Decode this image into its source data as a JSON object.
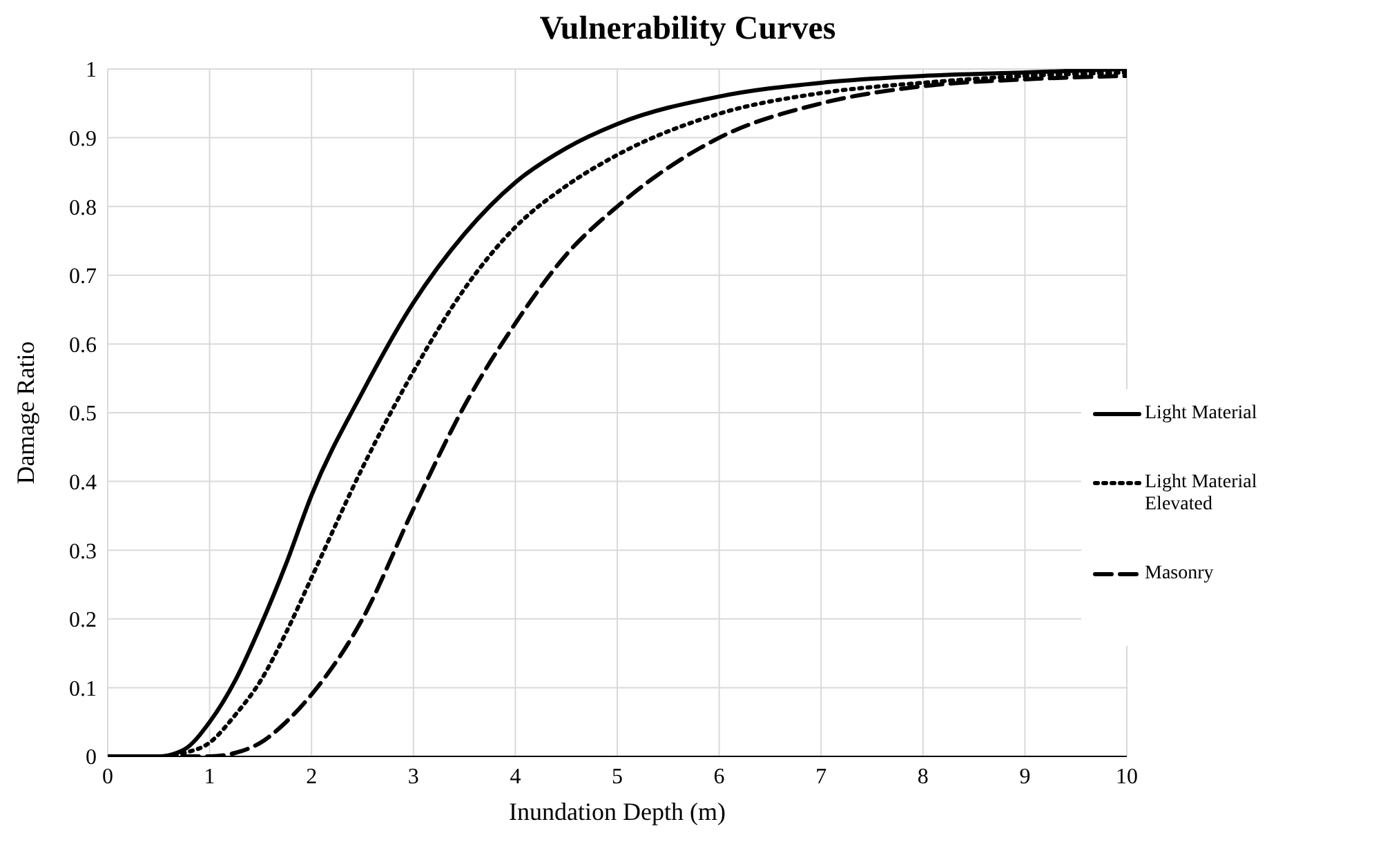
{
  "chart_data": {
    "type": "line",
    "title": "Vulnerability Curves",
    "xlabel": "Inundation Depth (m)",
    "ylabel": "Damage Ratio",
    "xlim": [
      0,
      10
    ],
    "xticks": [
      0,
      1,
      2,
      3,
      4,
      5,
      6,
      7,
      8,
      9,
      10
    ],
    "ylim": [
      0,
      1
    ],
    "yticks": [
      0,
      0.1,
      0.2,
      0.3,
      0.4,
      0.5,
      0.6,
      0.7,
      0.8,
      0.9,
      1
    ],
    "grid": true,
    "legend": "right",
    "marker": "none",
    "x": [
      0,
      0.5,
      0.75,
      1,
      1.25,
      1.5,
      1.75,
      2,
      2.5,
      3,
      3.5,
      4,
      4.5,
      5,
      6,
      7,
      8,
      9,
      10
    ],
    "series": [
      {
        "name": "Light Material",
        "color": "#000000",
        "line_style": "solid",
        "values": [
          0,
          0,
          0.01,
          0.05,
          0.11,
          0.19,
          0.28,
          0.38,
          0.53,
          0.66,
          0.76,
          0.835,
          0.885,
          0.92,
          0.96,
          0.98,
          0.99,
          0.995,
          1
        ]
      },
      {
        "name": "Light Material Elevated",
        "color": "#000000",
        "line_style": "dotted",
        "values": [
          0,
          0,
          0.005,
          0.02,
          0.06,
          0.11,
          0.18,
          0.26,
          0.42,
          0.56,
          0.68,
          0.77,
          0.83,
          0.875,
          0.935,
          0.965,
          0.98,
          0.99,
          0.995
        ]
      },
      {
        "name": "Masonry",
        "color": "#000000",
        "line_style": "dashed",
        "values": [
          0,
          0,
          0,
          0,
          0.005,
          0.02,
          0.05,
          0.09,
          0.2,
          0.36,
          0.51,
          0.63,
          0.73,
          0.8,
          0.9,
          0.95,
          0.975,
          0.985,
          0.99
        ]
      }
    ]
  }
}
